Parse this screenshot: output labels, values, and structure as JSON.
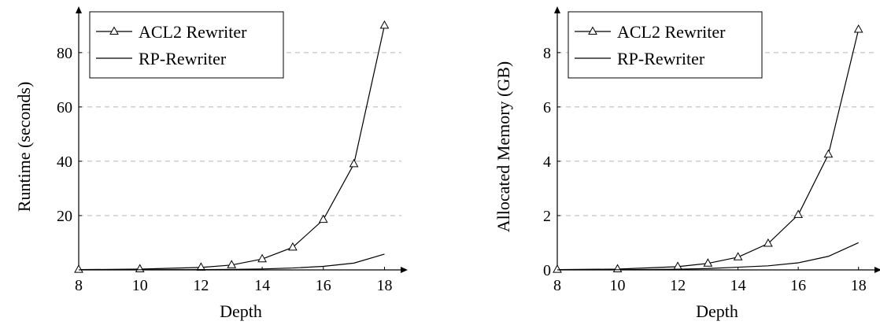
{
  "chart_data": [
    {
      "type": "line",
      "xlabel": "Depth",
      "ylabel": "Runtime (seconds)",
      "xlim": [
        8,
        18.4
      ],
      "ylim": [
        0,
        93
      ],
      "xticks": [
        "8",
        "10",
        "12",
        "14",
        "16",
        "18"
      ],
      "xtick_values": [
        8,
        10,
        12,
        14,
        16,
        18
      ],
      "yticks": [
        "20",
        "40",
        "60",
        "80"
      ],
      "ytick_values": [
        20,
        40,
        60,
        80
      ],
      "grid": "horizontal dashed",
      "legend_position": "top-left",
      "series": [
        {
          "name": "ACL2 Rewriter",
          "marker": "triangle",
          "x": [
            8,
            10,
            12,
            13,
            14,
            15,
            16,
            17,
            18
          ],
          "y": [
            0.1,
            0.3,
            0.9,
            1.8,
            4,
            8.3,
            18.5,
            39,
            90
          ]
        },
        {
          "name": "RP-Rewriter",
          "marker": "none",
          "x": [
            8,
            10,
            12,
            13,
            14,
            15,
            16,
            17,
            18
          ],
          "y": [
            0.02,
            0.05,
            0.12,
            0.2,
            0.35,
            0.7,
            1.3,
            2.5,
            5.8
          ]
        }
      ]
    },
    {
      "type": "line",
      "xlabel": "Depth",
      "ylabel": "Allocated Memory (GB)",
      "xlim": [
        8,
        18.4
      ],
      "ylim": [
        0,
        9.3
      ],
      "xticks": [
        "8",
        "10",
        "12",
        "14",
        "16",
        "18"
      ],
      "xtick_values": [
        8,
        10,
        12,
        14,
        16,
        18
      ],
      "yticks": [
        "0",
        "2",
        "4",
        "6",
        "8"
      ],
      "ytick_values": [
        0,
        2,
        4,
        6,
        8
      ],
      "grid": "horizontal dashed",
      "legend_position": "top-left",
      "series": [
        {
          "name": "ACL2 Rewriter",
          "marker": "triangle",
          "x": [
            8,
            10,
            12,
            13,
            14,
            15,
            16,
            17,
            18
          ],
          "y": [
            0.01,
            0.03,
            0.12,
            0.24,
            0.47,
            0.97,
            2.03,
            4.25,
            8.85
          ]
        },
        {
          "name": "RP-Rewriter",
          "marker": "none",
          "x": [
            8,
            10,
            12,
            13,
            14,
            15,
            16,
            17,
            18
          ],
          "y": [
            0.002,
            0.006,
            0.025,
            0.05,
            0.1,
            0.15,
            0.26,
            0.5,
            1.0
          ]
        }
      ]
    }
  ]
}
